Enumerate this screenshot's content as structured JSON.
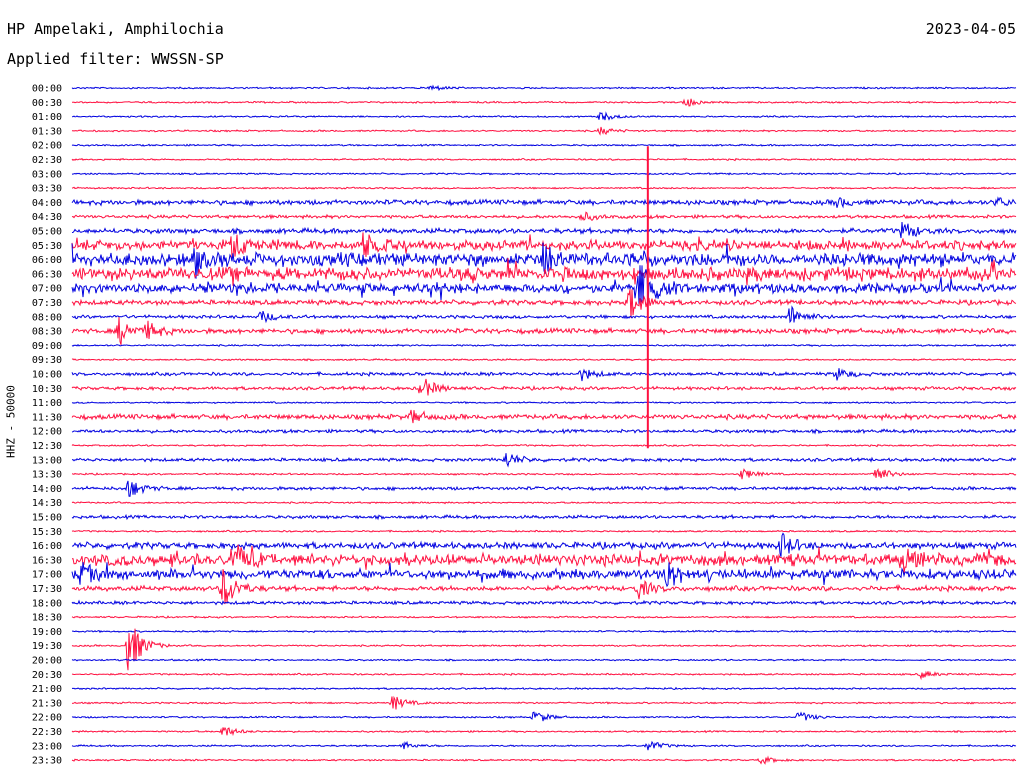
{
  "header": {
    "station": "HP Ampelaki, Amphilochia",
    "date": "2023-04-05",
    "filter": "Applied filter: WWSSN-SP"
  },
  "chart_data": {
    "type": "line",
    "title": "HP Ampelaki, Amphilochia",
    "ylabel": "HHZ - 50000",
    "row_labels": [
      "00:00",
      "00:30",
      "01:00",
      "01:30",
      "02:00",
      "02:30",
      "03:00",
      "03:30",
      "04:00",
      "04:30",
      "05:00",
      "05:30",
      "06:00",
      "06:30",
      "07:00",
      "07:30",
      "08:00",
      "08:30",
      "09:00",
      "09:30",
      "10:00",
      "10:30",
      "11:00",
      "11:30",
      "12:00",
      "12:30",
      "13:00",
      "13:30",
      "14:00",
      "14:30",
      "15:00",
      "15:30",
      "16:00",
      "16:30",
      "17:00",
      "17:30",
      "18:00",
      "18:30",
      "19:00",
      "19:30",
      "20:00",
      "20:30",
      "21:00",
      "21:30",
      "22:00",
      "22:30",
      "23:00",
      "23:30"
    ],
    "colors": [
      "#0000e0",
      "#ff1040"
    ],
    "noise": [
      1,
      1,
      1,
      1,
      1,
      1,
      1,
      1,
      3,
      2,
      3,
      6,
      8,
      8,
      6,
      3,
      2,
      3,
      1,
      1,
      2,
      2,
      1,
      3,
      2,
      1,
      2,
      1,
      2,
      1,
      2,
      1,
      4,
      7,
      6,
      3,
      2,
      1,
      1,
      1,
      1,
      1,
      1,
      1,
      1,
      1,
      1,
      1
    ],
    "events": [
      {
        "row": 0,
        "x": 0.38,
        "amp": 3
      },
      {
        "row": 1,
        "x": 0.65,
        "amp": 5
      },
      {
        "row": 2,
        "x": 0.56,
        "amp": 5
      },
      {
        "row": 3,
        "x": 0.56,
        "amp": 4
      },
      {
        "row": 8,
        "x": 0.81,
        "amp": 5
      },
      {
        "row": 8,
        "x": 0.98,
        "amp": 5
      },
      {
        "row": 9,
        "x": 0.54,
        "amp": 5
      },
      {
        "row": 10,
        "x": 0.88,
        "amp": 10
      },
      {
        "row": 11,
        "x": 0.17,
        "amp": 12
      },
      {
        "row": 11,
        "x": 0.31,
        "amp": 10
      },
      {
        "row": 12,
        "x": 0.13,
        "amp": 14
      },
      {
        "row": 12,
        "x": 0.5,
        "amp": 18
      },
      {
        "row": 14,
        "x": 0.6,
        "amp": 35
      },
      {
        "row": 15,
        "x": 0.59,
        "amp": 18
      },
      {
        "row": 16,
        "x": 0.2,
        "amp": 6
      },
      {
        "row": 16,
        "x": 0.76,
        "amp": 12
      },
      {
        "row": 17,
        "x": 0.05,
        "amp": 14
      },
      {
        "row": 17,
        "x": 0.08,
        "amp": 8
      },
      {
        "row": 20,
        "x": 0.54,
        "amp": 6
      },
      {
        "row": 20,
        "x": 0.81,
        "amp": 6
      },
      {
        "row": 21,
        "x": 0.37,
        "amp": 12
      },
      {
        "row": 23,
        "x": 0.36,
        "amp": 7
      },
      {
        "row": 26,
        "x": 0.46,
        "amp": 8
      },
      {
        "row": 27,
        "x": 0.71,
        "amp": 6
      },
      {
        "row": 27,
        "x": 0.85,
        "amp": 10
      },
      {
        "row": 28,
        "x": 0.06,
        "amp": 10
      },
      {
        "row": 32,
        "x": 0.75,
        "amp": 13
      },
      {
        "row": 33,
        "x": 0.17,
        "amp": 14
      },
      {
        "row": 33,
        "x": 0.88,
        "amp": 12
      },
      {
        "row": 34,
        "x": 0.01,
        "amp": 9
      },
      {
        "row": 34,
        "x": 0.63,
        "amp": 12
      },
      {
        "row": 35,
        "x": 0.16,
        "amp": 22
      },
      {
        "row": 35,
        "x": 0.6,
        "amp": 10
      },
      {
        "row": 39,
        "x": 0.06,
        "amp": 30
      },
      {
        "row": 41,
        "x": 0.9,
        "amp": 4
      },
      {
        "row": 43,
        "x": 0.34,
        "amp": 8
      },
      {
        "row": 44,
        "x": 0.49,
        "amp": 7
      },
      {
        "row": 44,
        "x": 0.77,
        "amp": 6
      },
      {
        "row": 45,
        "x": 0.16,
        "amp": 6
      },
      {
        "row": 46,
        "x": 0.35,
        "amp": 4
      },
      {
        "row": 46,
        "x": 0.61,
        "amp": 6
      },
      {
        "row": 47,
        "x": 0.73,
        "amp": 4
      }
    ],
    "large_event": {
      "row": 14,
      "x": 0.61,
      "up": 142,
      "down": 160
    }
  }
}
